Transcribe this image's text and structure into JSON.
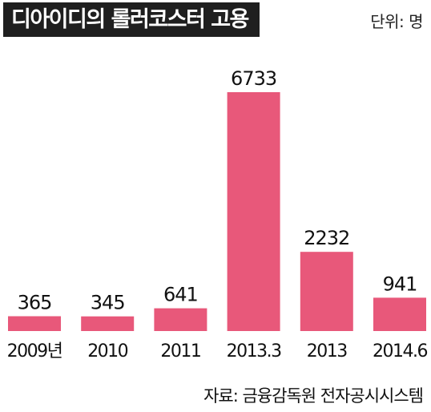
{
  "header": {
    "title": "디아이디의 롤러코스터 고용",
    "unit": "단위: 명"
  },
  "source": "자료: 금융감독원 전자공시시스템",
  "colors": {
    "bar": "#e8587a",
    "title_bg": "#1f1f1f"
  },
  "chart_data": {
    "type": "bar",
    "title": "디아이디의 롤러코스터 고용",
    "categories": [
      "2009년",
      "2010",
      "2011",
      "2013.3",
      "2013",
      "2014.6"
    ],
    "values": [
      365,
      345,
      641,
      6733,
      2232,
      941
    ],
    "value_labels": [
      "365",
      "345",
      "641",
      "6733",
      "2232",
      "941"
    ],
    "xlabel": "",
    "ylabel": "",
    "ylim": [
      0,
      6733
    ],
    "grid": false,
    "legend": "none"
  }
}
